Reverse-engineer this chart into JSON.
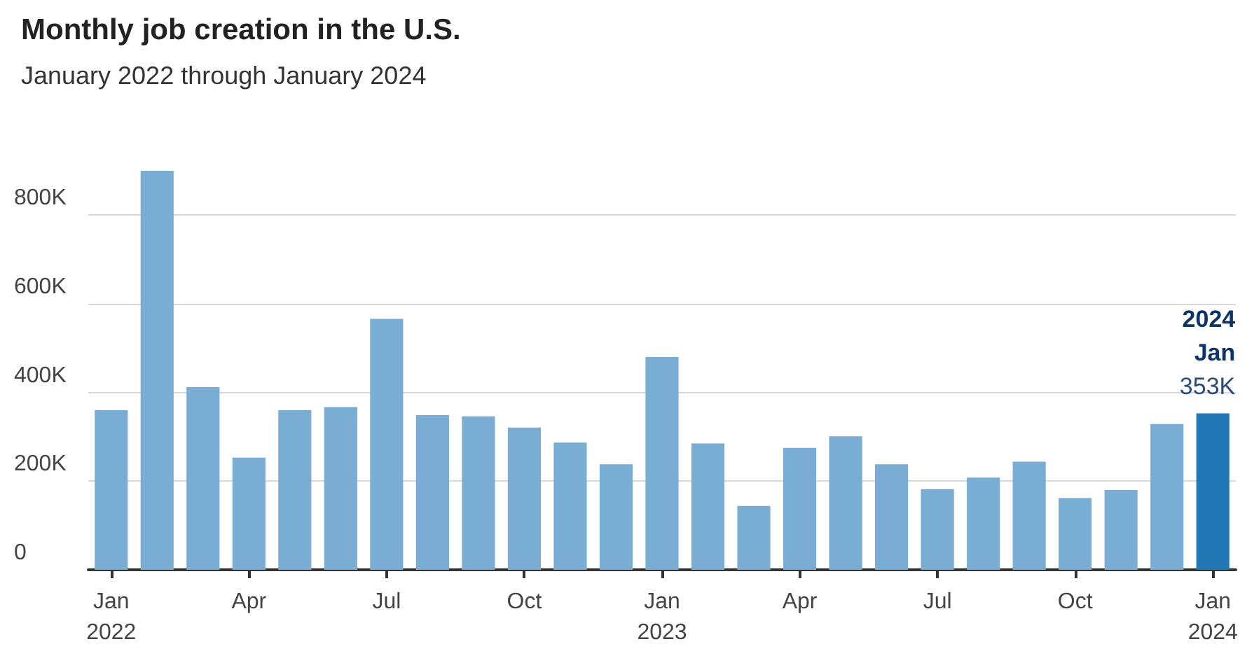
{
  "chart_data": {
    "type": "bar",
    "title": "Monthly job creation in the U.S.",
    "subtitle": "January 2022 through January 2024",
    "categories": [
      "Jan\n2022",
      null,
      null,
      "Apr",
      null,
      null,
      "Jul",
      null,
      null,
      "Oct",
      null,
      null,
      "Jan\n2023",
      null,
      null,
      "Apr",
      null,
      null,
      "Jul",
      null,
      null,
      "Oct",
      null,
      null,
      "Jan\n2024"
    ],
    "values": [
      360000,
      900000,
      412000,
      253000,
      360000,
      367000,
      566000,
      349000,
      346000,
      321000,
      287000,
      238000,
      480000,
      285000,
      144000,
      275000,
      301000,
      238000,
      182000,
      208000,
      244000,
      162000,
      180000,
      329000,
      353000
    ],
    "colors": [
      "#7aadd4",
      "#7aadd4",
      "#7aadd4",
      "#7aadd4",
      "#7aadd4",
      "#7aadd4",
      "#7aadd4",
      "#7aadd4",
      "#7aadd4",
      "#7aadd4",
      "#7aadd4",
      "#7aadd4",
      "#7aadd4",
      "#7aadd4",
      "#7aadd4",
      "#7aadd4",
      "#7aadd4",
      "#7aadd4",
      "#7aadd4",
      "#7aadd4",
      "#7aadd4",
      "#7aadd4",
      "#7aadd4",
      "#7aadd4",
      "#2176b4"
    ],
    "value_labels": [
      null,
      null,
      null,
      null,
      null,
      null,
      null,
      null,
      null,
      null,
      null,
      null,
      null,
      null,
      null,
      null,
      null,
      null,
      null,
      null,
      null,
      null,
      null,
      null,
      "353K"
    ],
    "annotations": [
      "2024",
      "Jan"
    ],
    "ylim": [
      0,
      900000
    ],
    "yticks": [
      {
        "value": 0,
        "label": "0"
      },
      {
        "value": 200000,
        "label": "200K"
      },
      {
        "value": 400000,
        "label": "400K"
      },
      {
        "value": 600000,
        "label": "600K"
      },
      {
        "value": 800000,
        "label": "800K"
      }
    ],
    "grid": "y"
  }
}
